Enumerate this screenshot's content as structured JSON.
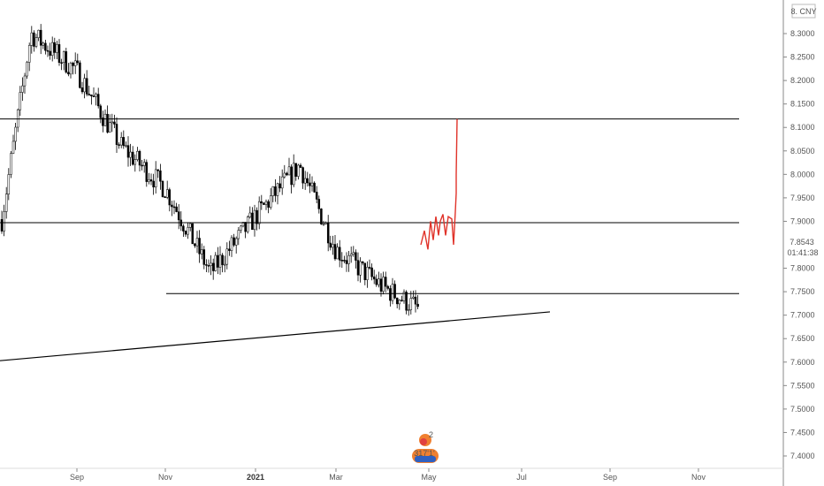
{
  "chart_data": {
    "type": "candlestick",
    "symbol_label": "8. CNY",
    "currency": "CNY",
    "y_axis": {
      "ylim": [
        7.37,
        8.38
      ],
      "ticks": [
        "8.3000",
        "8.2500",
        "8.2000",
        "8.1500",
        "8.1000",
        "8.0500",
        "8.0000",
        "7.9500",
        "7.9000",
        "7.8000",
        "7.7500",
        "7.7000",
        "7.6500",
        "7.6000",
        "7.5500",
        "7.5000",
        "7.4500",
        "7.4000"
      ],
      "last_price": "7.8543",
      "countdown": "01:41:38"
    },
    "x_axis": {
      "ticks": [
        {
          "label": "Sep",
          "bold": false
        },
        {
          "label": "Nov",
          "bold": false
        },
        {
          "label": "2021",
          "bold": true
        },
        {
          "label": "Mar",
          "bold": false
        },
        {
          "label": "May",
          "bold": false
        },
        {
          "label": "Jul",
          "bold": false
        },
        {
          "label": "Sep",
          "bold": false
        },
        {
          "label": "Nov",
          "bold": false
        }
      ]
    },
    "horizontal_levels": [
      8.118,
      7.897,
      7.746
    ],
    "support_trendline": [
      {
        "x": "2020-06",
        "y": 7.603
      },
      {
        "x": "2021-07",
        "y": 7.707
      }
    ],
    "price_path_keypoints": [
      [
        "2020-06",
        7.88
      ],
      [
        "2020-07",
        8.3
      ],
      [
        "2020-08",
        8.22
      ],
      [
        "2020-09",
        8.06
      ],
      [
        "2020-10",
        7.97
      ],
      [
        "2020-11",
        7.79
      ],
      [
        "2020-12",
        7.91
      ],
      [
        "2021-01",
        8.02
      ],
      [
        "2021-02",
        7.84
      ],
      [
        "2021-03",
        7.76
      ],
      [
        "2021-04",
        7.7
      ],
      [
        "2021-05",
        7.86
      ]
    ],
    "projection_path": [
      [
        "2021-05",
        7.85
      ],
      [
        "2021-05",
        7.88
      ],
      [
        "2021-05",
        7.84
      ],
      [
        "2021-05",
        7.9
      ],
      [
        "2021-05",
        7.86
      ],
      [
        "2021-05",
        7.91
      ],
      [
        "2021-05",
        7.87
      ],
      [
        "2021-05",
        7.9
      ],
      [
        "2021-05",
        7.915
      ],
      [
        "2021-05",
        7.87
      ],
      [
        "2021-06",
        7.91
      ],
      [
        "2021-06",
        7.905
      ],
      [
        "2021-06",
        7.85
      ],
      [
        "2021-06",
        7.92
      ],
      [
        "2021-06",
        7.96
      ],
      [
        "2021-06",
        8.0
      ],
      [
        "2021-06",
        8.118
      ]
    ],
    "colors": {
      "candle": "#000000",
      "projection": "#e0332a",
      "levels": "#000000",
      "axis_text": "#555555"
    },
    "badge_count": "2",
    "badge_text": "317'1'"
  }
}
